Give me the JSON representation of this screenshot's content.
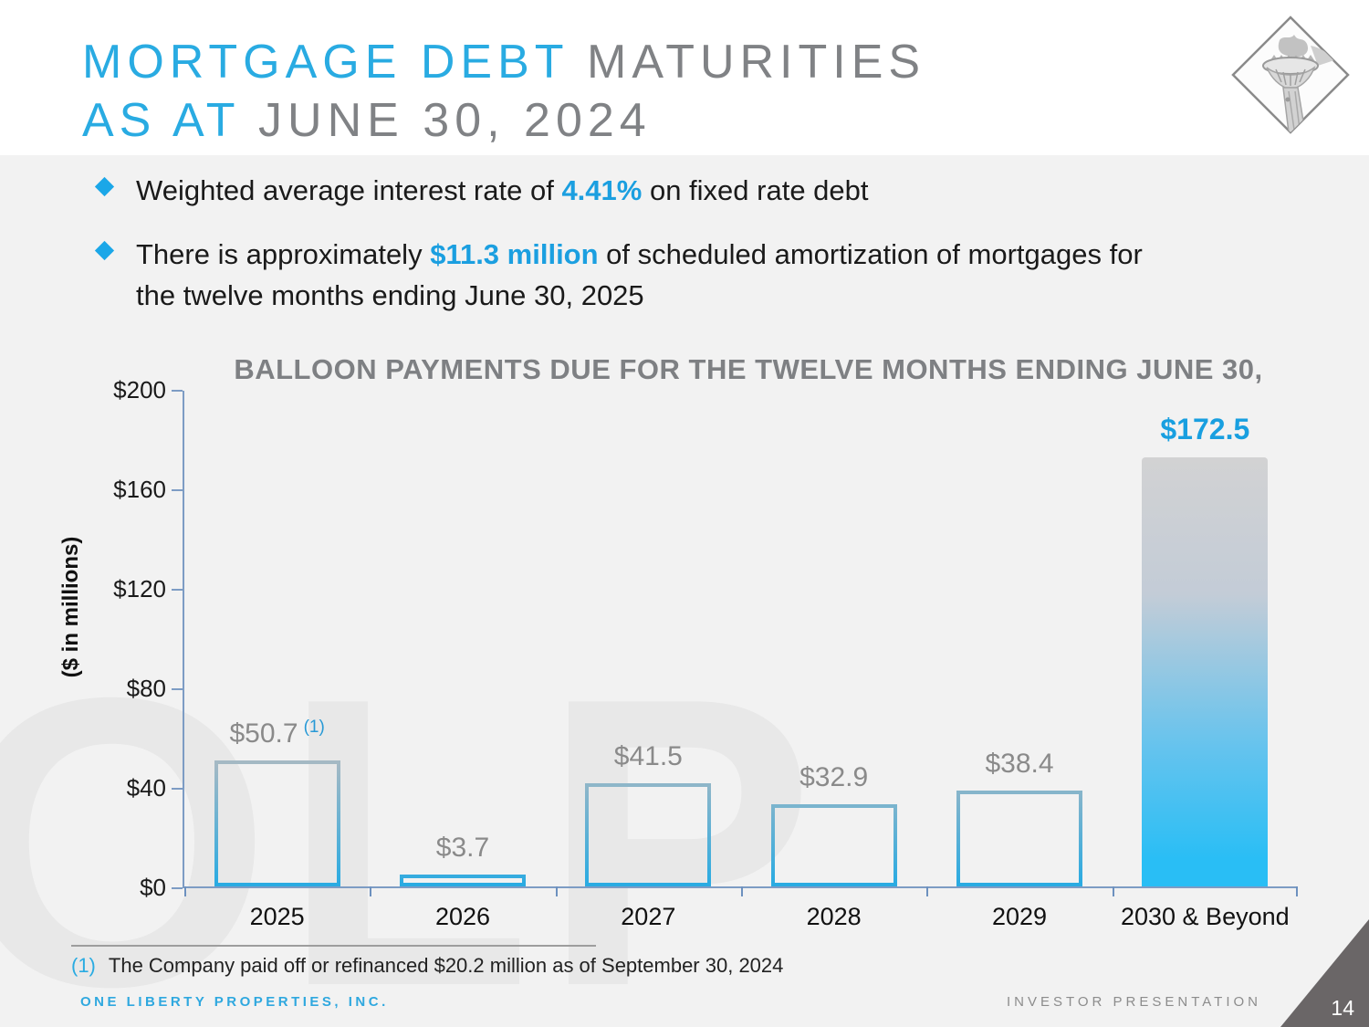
{
  "slide": {
    "title": {
      "line1_accent": "MORTGAGE DEBT ",
      "line1_rest": "MATURITIES",
      "line2_accent": "AS AT ",
      "line2_rest": "JUNE 30, 2024"
    },
    "bullets": [
      {
        "pre": "Weighted average interest rate of ",
        "highlight": "4.41%",
        "post": " on fixed rate debt"
      },
      {
        "pre": "There is approximately ",
        "highlight": "$11.3 million",
        "post": " of scheduled amortization of mortgages for the twelve months ending June 30, 2025"
      }
    ],
    "footnote": {
      "marker": "(1)",
      "text": "The Company paid off or refinanced $20.2 million as of September 30, 2024"
    },
    "footer": {
      "left": "ONE LIBERTY PROPERTIES, INC.",
      "right": "INVESTOR PRESENTATION",
      "page": "14"
    },
    "icons": {
      "logo": "statue-of-liberty-torch-in-diamond",
      "bullet": "diamond-bullet"
    },
    "watermark": "OLP"
  },
  "colors": {
    "accent_blue": "#29abe2",
    "chart_bright_blue": "#29bdf5",
    "value_label_blue": "#189fe0",
    "title_gray": "#808285",
    "label_gray": "#8a8a8a",
    "axis_blue_gray": "#7d9cc4",
    "background": "#f2f2f2",
    "title_band": "#ffffff",
    "wedge_gray": "#6a6667",
    "watermark_gray": "#e8e8e8"
  },
  "chart_data": {
    "type": "bar",
    "title": "BALLOON PAYMENTS DUE FOR THE TWELVE MONTHS ENDING JUNE 30,",
    "xlabel": "",
    "ylabel": "($ in millions)",
    "ylim": [
      0,
      200
    ],
    "yticks": [
      0,
      40,
      80,
      120,
      160,
      200
    ],
    "ytick_prefix": "$",
    "grid": false,
    "legend": false,
    "categories": [
      "2025",
      "2026",
      "2027",
      "2028",
      "2029",
      "2030 & Beyond"
    ],
    "values": [
      50.7,
      3.7,
      41.5,
      32.9,
      38.4,
      172.5
    ],
    "value_labels": [
      "$50.7",
      "$3.7",
      "$41.5",
      "$32.9",
      "$38.4",
      "$172.5"
    ],
    "label_notes": [
      "(1)",
      "",
      "",
      "",
      "",
      ""
    ],
    "bar_styles": [
      "outline",
      "outline",
      "outline",
      "outline",
      "outline",
      "filled"
    ]
  }
}
